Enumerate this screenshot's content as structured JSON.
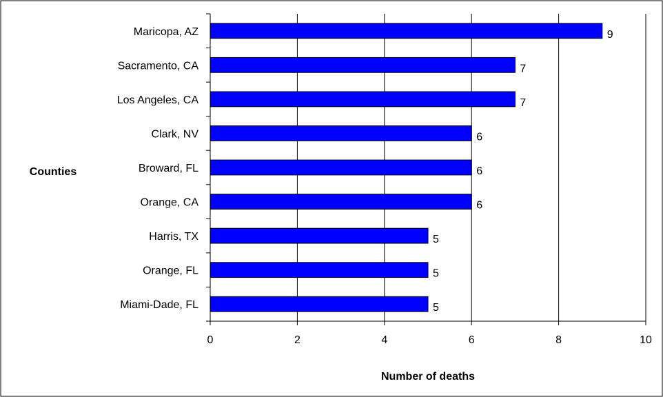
{
  "chart_data": {
    "type": "bar",
    "orientation": "horizontal",
    "title": "",
    "xlabel": "Number of deaths",
    "ylabel": "Counties",
    "categories": [
      "Maricopa, AZ",
      "Sacramento, CA",
      "Los Angeles, CA",
      "Clark, NV",
      "Broward, FL",
      "Orange, CA",
      "Harris, TX",
      "Orange, FL",
      "Miami-Dade, FL"
    ],
    "values": [
      9,
      7,
      7,
      6,
      6,
      6,
      5,
      5,
      5
    ],
    "xlim": [
      0,
      10
    ],
    "xticks": [
      0,
      2,
      4,
      6,
      8,
      10
    ],
    "grid": "vertical",
    "legend": "none",
    "bar_color": "#0000FF",
    "bar_edge_color": "#000000",
    "data_labels": true
  }
}
